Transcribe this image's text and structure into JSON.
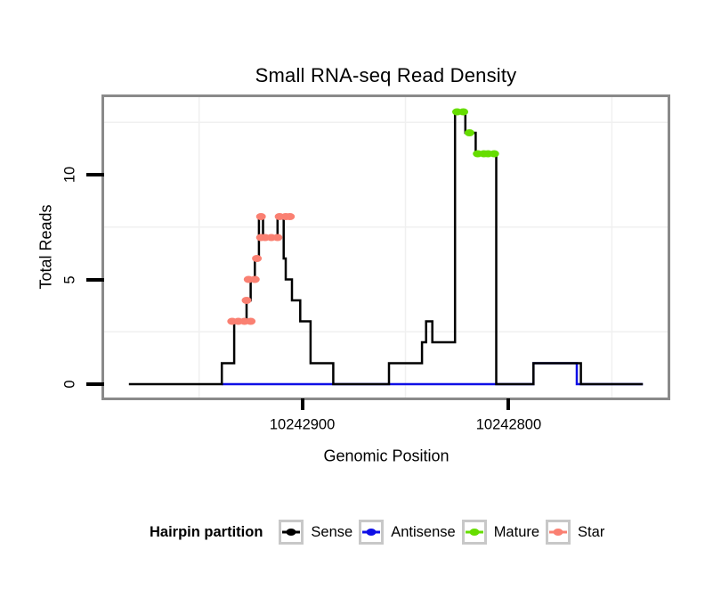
{
  "title": "Small RNA-seq Read Density",
  "axes": {
    "x": {
      "label": "Genomic Position",
      "ticks": [
        {
          "value": 10242900,
          "label": "10242900"
        },
        {
          "value": 10242800,
          "label": "10242800"
        }
      ],
      "reversed": true
    },
    "y": {
      "label": "Total Reads",
      "ticks": [
        {
          "value": 0,
          "label": "0"
        },
        {
          "value": 5,
          "label": "5"
        },
        {
          "value": 10,
          "label": "10"
        }
      ]
    }
  },
  "legend": {
    "title": "Hairpin partition",
    "items": [
      {
        "name": "sense",
        "label": "Sense",
        "color": "#000000"
      },
      {
        "name": "antisense",
        "label": "Antisense",
        "color": "#0f0fe6"
      },
      {
        "name": "mature",
        "label": "Mature",
        "color": "#66dd00"
      },
      {
        "name": "star",
        "label": "Star",
        "color": "#fa8072"
      }
    ]
  },
  "colors": {
    "panel_border": "#8a8a8a",
    "minor_grid": "#f0f0f0",
    "sense": "#000000",
    "antisense": "#0f0fe6",
    "mature": "#66dd00",
    "star": "#fa8072"
  },
  "chart_data": {
    "type": "line",
    "subtype": "step-density",
    "title": "Small RNA-seq Read Density",
    "xlabel": "Genomic Position",
    "ylabel": "Total Reads",
    "x_reversed": true,
    "xlim": [
      10242996,
      10242723
    ],
    "ylim": [
      0,
      13.7
    ],
    "x_ticks": [
      10242900,
      10242800
    ],
    "y_ticks": [
      0,
      5,
      10
    ],
    "minor_grid_x": [
      10242950,
      10242850,
      10242750
    ],
    "minor_grid_y": [
      2.5,
      7.5,
      12.5
    ],
    "grid": "minor-only",
    "legend_position": "bottom",
    "series": [
      {
        "name": "Sense",
        "color": "#000000",
        "style": "line",
        "linewidth": 2.5,
        "points": [
          [
            10242984,
            0
          ],
          [
            10242939,
            0
          ],
          [
            10242939,
            1
          ],
          [
            10242933,
            1
          ],
          [
            10242933,
            3
          ],
          [
            10242927,
            3
          ],
          [
            10242927,
            4
          ],
          [
            10242925,
            4
          ],
          [
            10242925,
            5
          ],
          [
            10242923,
            5
          ],
          [
            10242923,
            6
          ],
          [
            10242921,
            6
          ],
          [
            10242921,
            8
          ],
          [
            10242919,
            8
          ],
          [
            10242919,
            7
          ],
          [
            10242912,
            7
          ],
          [
            10242912,
            8
          ],
          [
            10242909,
            8
          ],
          [
            10242909,
            6
          ],
          [
            10242908,
            6
          ],
          [
            10242908,
            5
          ],
          [
            10242905,
            5
          ],
          [
            10242905,
            4
          ],
          [
            10242901,
            4
          ],
          [
            10242901,
            3
          ],
          [
            10242896,
            3
          ],
          [
            10242896,
            1
          ],
          [
            10242885,
            1
          ],
          [
            10242885,
            0
          ],
          [
            10242858,
            0
          ],
          [
            10242858,
            1
          ],
          [
            10242842,
            1
          ],
          [
            10242842,
            2
          ],
          [
            10242840,
            2
          ],
          [
            10242840,
            3
          ],
          [
            10242837,
            3
          ],
          [
            10242837,
            2
          ],
          [
            10242826,
            2
          ],
          [
            10242826,
            13
          ],
          [
            10242821,
            13
          ],
          [
            10242821,
            12
          ],
          [
            10242816,
            12
          ],
          [
            10242816,
            11
          ],
          [
            10242806,
            11
          ],
          [
            10242806,
            0
          ],
          [
            10242788,
            0
          ],
          [
            10242788,
            1
          ],
          [
            10242765,
            1
          ],
          [
            10242765,
            0
          ],
          [
            10242735,
            0
          ]
        ]
      },
      {
        "name": "Antisense",
        "color": "#0f0fe6",
        "style": "line",
        "linewidth": 2.5,
        "points": [
          [
            10242939,
            0
          ],
          [
            10242788,
            0
          ],
          [
            10242788,
            1
          ],
          [
            10242767,
            1
          ],
          [
            10242767,
            0
          ],
          [
            10242735,
            0
          ]
        ]
      },
      {
        "name": "Mature",
        "color": "#66dd00",
        "style": "dots",
        "points": [
          [
            10242825,
            13
          ],
          [
            10242822,
            13
          ],
          [
            10242819,
            12
          ],
          [
            10242815,
            11
          ],
          [
            10242812,
            11
          ],
          [
            10242810,
            11
          ],
          [
            10242807,
            11
          ]
        ]
      },
      {
        "name": "Star",
        "color": "#fa8072",
        "style": "dots",
        "points": [
          [
            10242934,
            3
          ],
          [
            10242931,
            3
          ],
          [
            10242928,
            3
          ],
          [
            10242925,
            3
          ],
          [
            10242927,
            4
          ],
          [
            10242926,
            5
          ],
          [
            10242923,
            5
          ],
          [
            10242922,
            6
          ],
          [
            10242920,
            7
          ],
          [
            10242918,
            7
          ],
          [
            10242915,
            7
          ],
          [
            10242912,
            7
          ],
          [
            10242920,
            8
          ],
          [
            10242911,
            8
          ],
          [
            10242908,
            8
          ],
          [
            10242906,
            8
          ]
        ]
      }
    ]
  }
}
